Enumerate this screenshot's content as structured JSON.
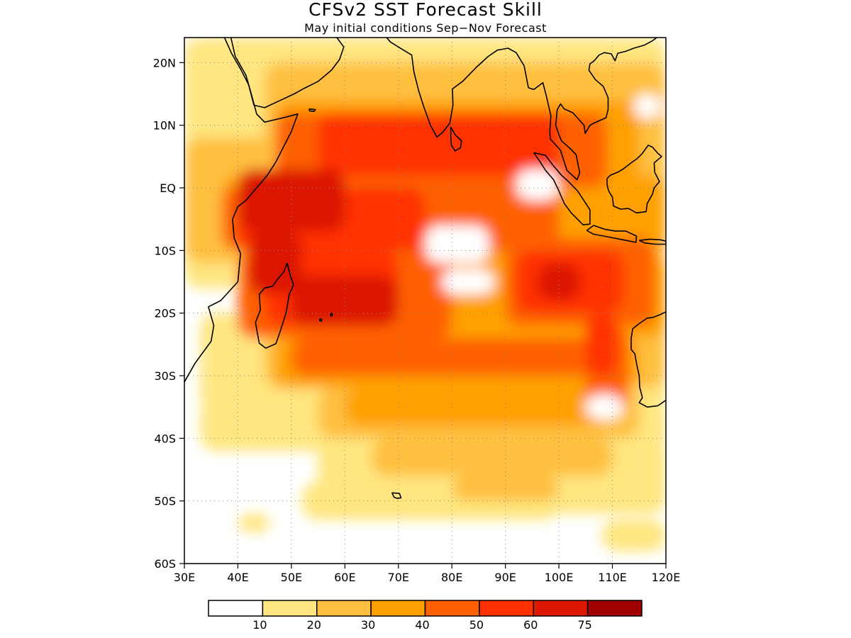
{
  "header": {
    "title": "CFSv2 SST Forecast Skill",
    "subtitle": "May initial conditions  Sep−Nov Forecast"
  },
  "map": {
    "lon_range": [
      30,
      120
    ],
    "lat_range": [
      -60,
      24
    ],
    "lon_ticks": [
      {
        "value": 30,
        "label": "30E"
      },
      {
        "value": 40,
        "label": "40E"
      },
      {
        "value": 50,
        "label": "50E"
      },
      {
        "value": 60,
        "label": "60E"
      },
      {
        "value": 70,
        "label": "70E"
      },
      {
        "value": 80,
        "label": "80E"
      },
      {
        "value": 90,
        "label": "90E"
      },
      {
        "value": 100,
        "label": "100E"
      },
      {
        "value": 110,
        "label": "110E"
      },
      {
        "value": 120,
        "label": "120E"
      }
    ],
    "lat_ticks": [
      {
        "value": 20,
        "label": "20N"
      },
      {
        "value": 10,
        "label": "10N"
      },
      {
        "value": 0,
        "label": "EQ"
      },
      {
        "value": -10,
        "label": "10S"
      },
      {
        "value": -20,
        "label": "20S"
      },
      {
        "value": -30,
        "label": "30S"
      },
      {
        "value": -40,
        "label": "40S"
      },
      {
        "value": -50,
        "label": "50S"
      },
      {
        "value": -60,
        "label": "60S"
      }
    ],
    "grid": "dotted"
  },
  "colorbar": {
    "colors": [
      "#ffffff",
      "#ffe680",
      "#ffc040",
      "#ffa000",
      "#ff6000",
      "#ff3000",
      "#dc1800",
      "#a00000"
    ],
    "labels": [
      "10",
      "20",
      "30",
      "40",
      "50",
      "60",
      "75"
    ]
  },
  "skill_regions": [
    {
      "level": 1,
      "lon": 30,
      "lat": 24,
      "w": 90,
      "h": 40
    },
    {
      "level": 1,
      "lon": 33,
      "lat": -20,
      "w": 87,
      "h": 16
    },
    {
      "level": 1,
      "lon": 33,
      "lat": -34,
      "w": 87,
      "h": 8
    },
    {
      "level": 1,
      "lon": 55,
      "lat": -40,
      "w": 65,
      "h": 10
    },
    {
      "level": 1,
      "lon": 52,
      "lat": -47,
      "w": 48,
      "h": 6
    },
    {
      "level": 1,
      "lon": 90,
      "lat": -47,
      "w": 30,
      "h": 5
    },
    {
      "level": 1,
      "lon": 108,
      "lat": -53,
      "w": 12,
      "h": 5
    },
    {
      "level": 1,
      "lon": 40,
      "lat": -52,
      "w": 6,
      "h": 3
    },
    {
      "level": 2,
      "lon": 45,
      "lat": 20,
      "w": 75,
      "h": 24
    },
    {
      "level": 2,
      "lon": 30,
      "lat": 8,
      "w": 90,
      "h": 20
    },
    {
      "level": 2,
      "lon": 45,
      "lat": -12,
      "w": 75,
      "h": 20
    },
    {
      "level": 2,
      "lon": 55,
      "lat": -32,
      "w": 60,
      "h": 8
    },
    {
      "level": 2,
      "lon": 65,
      "lat": -40,
      "w": 45,
      "h": 6
    },
    {
      "level": 2,
      "lon": 80,
      "lat": -46,
      "w": 20,
      "h": 4
    },
    {
      "level": 2,
      "lon": 110,
      "lat": 20,
      "w": 10,
      "h": 14
    },
    {
      "level": 3,
      "lon": 47,
      "lat": 14,
      "w": 68,
      "h": 14
    },
    {
      "level": 3,
      "lon": 37,
      "lat": 2,
      "w": 83,
      "h": 12
    },
    {
      "level": 3,
      "lon": 40,
      "lat": -10,
      "w": 80,
      "h": 14
    },
    {
      "level": 3,
      "lon": 47,
      "lat": -24,
      "w": 68,
      "h": 8
    },
    {
      "level": 3,
      "lon": 60,
      "lat": -32,
      "w": 50,
      "h": 6
    },
    {
      "level": 4,
      "lon": 47,
      "lat": 12,
      "w": 62,
      "h": 12
    },
    {
      "level": 4,
      "lon": 37,
      "lat": 0,
      "w": 63,
      "h": 10
    },
    {
      "level": 4,
      "lon": 40,
      "lat": -10,
      "w": 40,
      "h": 14
    },
    {
      "level": 4,
      "lon": 90,
      "lat": -8,
      "w": 28,
      "h": 14
    },
    {
      "level": 4,
      "lon": 50,
      "lat": -24,
      "w": 60,
      "h": 6
    },
    {
      "level": 4,
      "lon": 105,
      "lat": -22,
      "w": 8,
      "h": 14
    },
    {
      "level": 5,
      "lon": 55,
      "lat": 12,
      "w": 45,
      "h": 10
    },
    {
      "level": 5,
      "lon": 40,
      "lat": 0,
      "w": 35,
      "h": 10
    },
    {
      "level": 5,
      "lon": 45,
      "lat": -10,
      "w": 25,
      "h": 12
    },
    {
      "level": 5,
      "lon": 92,
      "lat": -10,
      "w": 20,
      "h": 10
    },
    {
      "level": 5,
      "lon": 105,
      "lat": -20,
      "w": 6,
      "h": 10
    },
    {
      "level": 6,
      "lon": 40,
      "lat": 3,
      "w": 20,
      "h": 10
    },
    {
      "level": 6,
      "lon": 42,
      "lat": -7,
      "w": 10,
      "h": 10
    },
    {
      "level": 6,
      "lon": 50,
      "lat": -14,
      "w": 20,
      "h": 8
    },
    {
      "level": 6,
      "lon": 96,
      "lat": -12,
      "w": 8,
      "h": 6
    }
  ],
  "blank_regions": [
    {
      "lon": 75,
      "lat": -6,
      "w": 12,
      "h": 6
    },
    {
      "lon": 78,
      "lat": -13,
      "w": 10,
      "h": 4
    },
    {
      "lon": 92,
      "lat": 3,
      "w": 8,
      "h": 5
    },
    {
      "lon": 105,
      "lat": -33,
      "w": 7,
      "h": 4
    },
    {
      "lon": 114,
      "lat": 15,
      "w": 5,
      "h": 4
    }
  ],
  "coastlines": [
    {
      "name": "africa-coast",
      "points": [
        [
          30,
          -31
        ],
        [
          32,
          -28
        ],
        [
          35,
          -24.5
        ],
        [
          35.5,
          -22
        ],
        [
          34.5,
          -19
        ],
        [
          36.8,
          -18
        ],
        [
          40,
          -15
        ],
        [
          40.5,
          -10.5
        ],
        [
          39.3,
          -8
        ],
        [
          39,
          -5
        ],
        [
          40,
          -3
        ],
        [
          41.5,
          -2
        ],
        [
          43,
          -0.5
        ],
        [
          45.5,
          2
        ],
        [
          47,
          4
        ],
        [
          48.5,
          6.5
        ],
        [
          50,
          9
        ],
        [
          51.2,
          11.8
        ],
        [
          49,
          11.3
        ],
        [
          45,
          10.5
        ],
        [
          43.5,
          11.8
        ],
        [
          43.2,
          12.8
        ],
        [
          42.5,
          15
        ],
        [
          41.5,
          18
        ],
        [
          39.5,
          21
        ],
        [
          38.7,
          24
        ]
      ]
    },
    {
      "name": "arabia-coast",
      "points": [
        [
          37.5,
          24
        ],
        [
          38.8,
          21.5
        ],
        [
          40.5,
          19
        ],
        [
          42,
          16.5
        ],
        [
          43,
          13.2
        ],
        [
          45,
          12.8
        ],
        [
          48,
          14
        ],
        [
          50.5,
          15
        ],
        [
          52.2,
          15.8
        ],
        [
          55,
          17
        ],
        [
          57.5,
          18.8
        ],
        [
          59,
          20.5
        ],
        [
          59.8,
          22.5
        ],
        [
          58.5,
          24
        ]
      ]
    },
    {
      "name": "india-coast",
      "points": [
        [
          66,
          24
        ],
        [
          67.5,
          24.3
        ],
        [
          68.5,
          23.3
        ],
        [
          70,
          22.5
        ],
        [
          72.5,
          21.2
        ],
        [
          72.9,
          18.5
        ],
        [
          73.8,
          15.5
        ],
        [
          74.8,
          12.8
        ],
        [
          76,
          10
        ],
        [
          77.2,
          8.1
        ],
        [
          78.2,
          8.8
        ],
        [
          79.6,
          10.3
        ],
        [
          80.2,
          13.2
        ],
        [
          80.1,
          15.8
        ],
        [
          82,
          17
        ],
        [
          84.5,
          19.2
        ],
        [
          86.8,
          21
        ],
        [
          88.5,
          22
        ],
        [
          90.5,
          22.3
        ],
        [
          92,
          21.6
        ],
        [
          93.5,
          19.5
        ],
        [
          94.3,
          16
        ],
        [
          95.3,
          15.7
        ],
        [
          97,
          16.8
        ],
        [
          97.7,
          14.5
        ],
        [
          98.5,
          11.5
        ],
        [
          98.3,
          9
        ],
        [
          98.4,
          7.8
        ],
        [
          100.3,
          6
        ],
        [
          101.5,
          2.8
        ],
        [
          103.4,
          1.3
        ],
        [
          103.9,
          2.4
        ],
        [
          103.2,
          5.3
        ],
        [
          102.2,
          6.2
        ],
        [
          100.5,
          7.5
        ],
        [
          100,
          8.5
        ],
        [
          99.4,
          10
        ],
        [
          99.7,
          12.5
        ],
        [
          100.3,
          13.4
        ],
        [
          101,
          12.6
        ],
        [
          102.6,
          12
        ],
        [
          104.7,
          10
        ],
        [
          104.9,
          8.7
        ],
        [
          105.8,
          10
        ],
        [
          106.7,
          10.4
        ],
        [
          108.8,
          11.2
        ],
        [
          109.2,
          12.5
        ],
        [
          109.2,
          14.4
        ],
        [
          108.3,
          16.2
        ],
        [
          106.8,
          17.3
        ],
        [
          105.6,
          18.8
        ],
        [
          105.8,
          19.8
        ],
        [
          106.6,
          20.3
        ],
        [
          107.5,
          21.2
        ],
        [
          108.5,
          21.6
        ],
        [
          109.8,
          21.4
        ],
        [
          110.5,
          20.3
        ],
        [
          111,
          21.5
        ],
        [
          112.5,
          21.8
        ],
        [
          114,
          22.3
        ],
        [
          116,
          22.8
        ],
        [
          117.5,
          23.5
        ],
        [
          118.3,
          24
        ]
      ]
    },
    {
      "name": "sri-lanka",
      "points": [
        [
          79.8,
          9.7
        ],
        [
          80.6,
          8.5
        ],
        [
          81.8,
          7.5
        ],
        [
          81.6,
          6.4
        ],
        [
          80.6,
          5.9
        ],
        [
          79.9,
          6.8
        ],
        [
          79.8,
          8.2
        ],
        [
          79.8,
          9.7
        ]
      ]
    },
    {
      "name": "madagascar",
      "points": [
        [
          49.2,
          -12
        ],
        [
          49.8,
          -14
        ],
        [
          50.4,
          -15.5
        ],
        [
          49.6,
          -17
        ],
        [
          49,
          -20
        ],
        [
          47.8,
          -23.2
        ],
        [
          47.1,
          -24.9
        ],
        [
          45.2,
          -25.6
        ],
        [
          44,
          -24.8
        ],
        [
          43.6,
          -23
        ],
        [
          43.3,
          -21.5
        ],
        [
          44.2,
          -19.5
        ],
        [
          44,
          -17
        ],
        [
          45,
          -16
        ],
        [
          46.5,
          -15.7
        ],
        [
          47.5,
          -14.5
        ],
        [
          48.6,
          -13.4
        ],
        [
          49.2,
          -12
        ]
      ]
    },
    {
      "name": "sumatra",
      "points": [
        [
          95.3,
          5.6
        ],
        [
          97.5,
          5.2
        ],
        [
          98.8,
          3.7
        ],
        [
          100.5,
          2
        ],
        [
          101.8,
          1
        ],
        [
          103.5,
          -0.5
        ],
        [
          104.5,
          -1.8
        ],
        [
          105.8,
          -3.5
        ],
        [
          105.8,
          -5.8
        ],
        [
          104.5,
          -5.9
        ],
        [
          102.3,
          -4
        ],
        [
          101,
          -2.5
        ],
        [
          100,
          -0.5
        ],
        [
          99,
          1.3
        ],
        [
          97.5,
          2.8
        ],
        [
          96.3,
          4.4
        ],
        [
          95.3,
          5.6
        ]
      ]
    },
    {
      "name": "java",
      "points": [
        [
          105.2,
          -6.8
        ],
        [
          106.5,
          -6
        ],
        [
          108.5,
          -6.6
        ],
        [
          110.5,
          -6.9
        ],
        [
          112.5,
          -6.9
        ],
        [
          114.5,
          -7.7
        ],
        [
          114.4,
          -8.7
        ],
        [
          112,
          -8.3
        ],
        [
          109,
          -7.8
        ],
        [
          106.5,
          -7.4
        ],
        [
          105.2,
          -6.8
        ]
      ]
    },
    {
      "name": "lesser-sunda",
      "points": [
        [
          115,
          -8.4
        ],
        [
          117,
          -8.2
        ],
        [
          119,
          -8.3
        ],
        [
          120,
          -8.5
        ],
        [
          120,
          -9
        ],
        [
          118,
          -9
        ],
        [
          116,
          -8.8
        ],
        [
          115,
          -8.4
        ]
      ]
    },
    {
      "name": "borneo",
      "points": [
        [
          109,
          1.5
        ],
        [
          109.6,
          2
        ],
        [
          111,
          2.5
        ],
        [
          112,
          3
        ],
        [
          113.5,
          4
        ],
        [
          114.5,
          4.6
        ],
        [
          115.5,
          5.4
        ],
        [
          116.7,
          6.8
        ],
        [
          117.5,
          6.5
        ],
        [
          118.5,
          5.5
        ],
        [
          119.2,
          5
        ],
        [
          118.5,
          4.5
        ],
        [
          117.8,
          4
        ],
        [
          117.9,
          2.5
        ],
        [
          118.8,
          1
        ],
        [
          117.8,
          0
        ],
        [
          117.5,
          -1
        ],
        [
          116.5,
          -2.5
        ],
        [
          116.3,
          -3.8
        ],
        [
          114.5,
          -4
        ],
        [
          113,
          -3.3
        ],
        [
          111.5,
          -3.4
        ],
        [
          110.2,
          -2.9
        ],
        [
          110,
          -1.5
        ],
        [
          109.3,
          -0.5
        ],
        [
          109,
          0.5
        ],
        [
          109,
          1.5
        ]
      ]
    },
    {
      "name": "australia-west",
      "points": [
        [
          120,
          -19.8
        ],
        [
          118.8,
          -20.3
        ],
        [
          117.5,
          -20.7
        ],
        [
          116.5,
          -20.8
        ],
        [
          114.8,
          -21.8
        ],
        [
          113.8,
          -22.5
        ],
        [
          113.5,
          -24
        ],
        [
          113.5,
          -25.8
        ],
        [
          114.2,
          -26.5
        ],
        [
          114.5,
          -28
        ],
        [
          115,
          -30
        ],
        [
          115.1,
          -31.8
        ],
        [
          115.6,
          -33.5
        ],
        [
          115,
          -34.3
        ],
        [
          116.5,
          -35
        ],
        [
          118.5,
          -34.8
        ],
        [
          120,
          -33.9
        ]
      ]
    },
    {
      "name": "socotra",
      "points": [
        [
          53.3,
          12.6
        ],
        [
          54.5,
          12.5
        ],
        [
          54.2,
          12.2
        ],
        [
          53.4,
          12.3
        ],
        [
          53.3,
          12.6
        ]
      ]
    },
    {
      "name": "kerguelen",
      "points": [
        [
          68.8,
          -48.7
        ],
        [
          70.2,
          -48.8
        ],
        [
          70.5,
          -49.5
        ],
        [
          69.8,
          -49.6
        ],
        [
          69.2,
          -49.4
        ],
        [
          68.8,
          -48.7
        ]
      ]
    },
    {
      "name": "mauritius",
      "points": [
        [
          57.4,
          -20
        ],
        [
          57.7,
          -20.2
        ],
        [
          57.5,
          -20.5
        ],
        [
          57.3,
          -20.3
        ],
        [
          57.4,
          -20
        ]
      ]
    },
    {
      "name": "reunion",
      "points": [
        [
          55.3,
          -20.9
        ],
        [
          55.7,
          -21
        ],
        [
          55.6,
          -21.3
        ],
        [
          55.3,
          -21.2
        ],
        [
          55.3,
          -20.9
        ]
      ]
    }
  ]
}
